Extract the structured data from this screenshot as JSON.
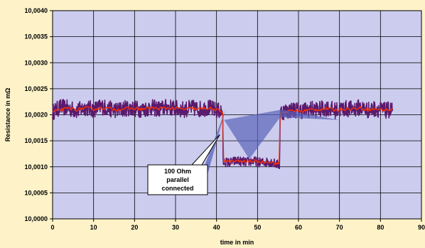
{
  "colors": {
    "background": "#fdf2c8",
    "plot_area": "#ccccee",
    "gridline": "#000000",
    "raw_series": "#5a1a6e",
    "smooth_series": "#ff3300",
    "callout_shade": "#5a64b8"
  },
  "chart_data": {
    "type": "line",
    "xlabel": "time in min",
    "ylabel": "Resistance in mΩ",
    "xlim": [
      0,
      90
    ],
    "ylim": [
      10.0,
      10.004
    ],
    "x_ticks": [
      "0",
      "10",
      "20",
      "30",
      "40",
      "50",
      "60",
      "70",
      "80",
      "90"
    ],
    "y_ticks": [
      "10,0000",
      "10,0005",
      "10,0010",
      "10,0015",
      "10,0020",
      "10,0025",
      "10,0030",
      "10,0035",
      "10,0040"
    ],
    "grid": true,
    "legend": "none",
    "annotation": {
      "lines": [
        "100 Ohm",
        "parallel",
        "connected"
      ],
      "points_to": [
        [
          41.5,
          10.0016
        ],
        [
          41.5,
          10.00195
        ],
        [
          55.5,
          10.00195
        ]
      ]
    },
    "series": [
      {
        "style": "noisy",
        "points": [
          [
            0,
            10.00205
          ],
          [
            2,
            10.00215
          ],
          [
            4,
            10.00212
          ],
          [
            6,
            10.00208
          ],
          [
            8,
            10.00214
          ],
          [
            10,
            10.0021
          ],
          [
            12,
            10.00216
          ],
          [
            14,
            10.00211
          ],
          [
            16,
            10.00209
          ],
          [
            18,
            10.00213
          ],
          [
            20,
            10.00212
          ],
          [
            22,
            10.0021
          ],
          [
            24,
            10.00214
          ],
          [
            26,
            10.00211
          ],
          [
            28,
            10.00215
          ],
          [
            30,
            10.00212
          ],
          [
            32,
            10.0021
          ],
          [
            34,
            10.00213
          ],
          [
            36,
            10.00211
          ],
          [
            38,
            10.00214
          ],
          [
            40,
            10.00208
          ],
          [
            41.5,
            10.00207
          ],
          [
            41.6,
            10.0011
          ],
          [
            43,
            10.00108
          ],
          [
            45,
            10.00112
          ],
          [
            47,
            10.00109
          ],
          [
            49,
            10.00111
          ],
          [
            51,
            10.00108
          ],
          [
            53,
            10.0011
          ],
          [
            55.4,
            10.00103
          ],
          [
            55.5,
            10.00205
          ],
          [
            57,
            10.00207
          ],
          [
            59,
            10.0021
          ],
          [
            61,
            10.00208
          ],
          [
            63,
            10.00211
          ],
          [
            65,
            10.0021
          ],
          [
            67,
            10.00213
          ],
          [
            69,
            10.00208
          ],
          [
            71,
            10.00212
          ],
          [
            73,
            10.00211
          ],
          [
            75,
            10.00214
          ],
          [
            77,
            10.00209
          ],
          [
            79,
            10.00212
          ],
          [
            81,
            10.00208
          ],
          [
            83,
            10.0021
          ]
        ]
      },
      {
        "style": "smoothed",
        "points": [
          [
            0,
            10.00205
          ],
          [
            2,
            10.0021
          ],
          [
            4,
            10.00212
          ],
          [
            6,
            10.0021
          ],
          [
            8,
            10.00213
          ],
          [
            10,
            10.00211
          ],
          [
            12,
            10.00213
          ],
          [
            14,
            10.00212
          ],
          [
            16,
            10.0021
          ],
          [
            18,
            10.00212
          ],
          [
            20,
            10.00212
          ],
          [
            22,
            10.00211
          ],
          [
            24,
            10.00213
          ],
          [
            26,
            10.00212
          ],
          [
            28,
            10.00213
          ],
          [
            30,
            10.00212
          ],
          [
            32,
            10.00211
          ],
          [
            34,
            10.00212
          ],
          [
            36,
            10.00211
          ],
          [
            38,
            10.00213
          ],
          [
            40,
            10.00209
          ],
          [
            41.5,
            10.00205
          ],
          [
            41.6,
            10.00112
          ],
          [
            43,
            10.0011
          ],
          [
            45,
            10.00111
          ],
          [
            47,
            10.0011
          ],
          [
            49,
            10.00111
          ],
          [
            51,
            10.00109
          ],
          [
            53,
            10.0011
          ],
          [
            55.4,
            10.00104
          ],
          [
            55.5,
            10.00203
          ],
          [
            57,
            10.00206
          ],
          [
            59,
            10.00208
          ],
          [
            61,
            10.00207
          ],
          [
            63,
            10.0021
          ],
          [
            65,
            10.0021
          ],
          [
            67,
            10.00212
          ],
          [
            69,
            10.00209
          ],
          [
            71,
            10.00211
          ],
          [
            73,
            10.00211
          ],
          [
            75,
            10.00213
          ],
          [
            77,
            10.0021
          ],
          [
            79,
            10.00211
          ],
          [
            81,
            10.00209
          ],
          [
            83,
            10.0021
          ]
        ]
      }
    ]
  }
}
